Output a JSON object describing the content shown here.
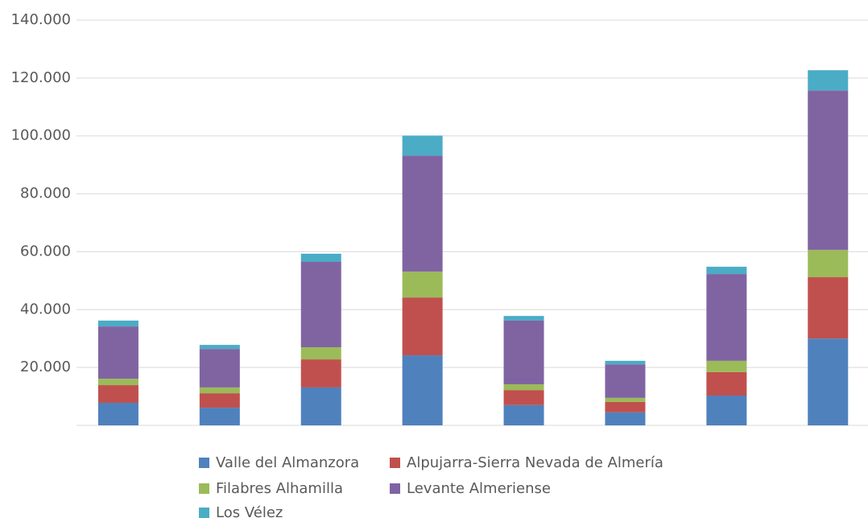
{
  "chart_data": {
    "type": "stacked_bar",
    "categories": [
      null,
      null,
      null,
      null,
      null,
      null,
      null,
      null
    ],
    "series": [
      {
        "name": "Valle del Almanzora",
        "color": "#4f81bd",
        "values": [
          7800,
          6100,
          13100,
          24200,
          7000,
          4500,
          10300,
          30000
        ]
      },
      {
        "name": "Alpujarra-Sierra Nevada de Almería",
        "color": "#c0504d",
        "values": [
          6100,
          5000,
          9700,
          20000,
          5200,
          3600,
          8100,
          21200
        ]
      },
      {
        "name": "Filabres Alhamilla",
        "color": "#9bbb59",
        "values": [
          2200,
          2000,
          4200,
          8900,
          2000,
          1400,
          3900,
          9400
        ]
      },
      {
        "name": "Levante Almeriense",
        "color": "#8064a2",
        "values": [
          18100,
          13300,
          29500,
          40100,
          22000,
          11600,
          30000,
          55100
        ]
      },
      {
        "name": "Los Vélez",
        "color": "#4bacc6",
        "values": [
          2000,
          1400,
          2800,
          6900,
          1600,
          1200,
          2500,
          7000
        ]
      }
    ],
    "ylim": [
      0,
      140000
    ],
    "yticks": [
      {
        "value": 20000,
        "label": "20.000"
      },
      {
        "value": 40000,
        "label": "40.000"
      },
      {
        "value": 60000,
        "label": "60.000"
      },
      {
        "value": 80000,
        "label": "80.000"
      },
      {
        "value": 100000,
        "label": "100.000"
      },
      {
        "value": 120000,
        "label": "120.000"
      },
      {
        "value": 140000,
        "label": "140.000"
      }
    ],
    "grid": true,
    "legend": "bottom"
  }
}
